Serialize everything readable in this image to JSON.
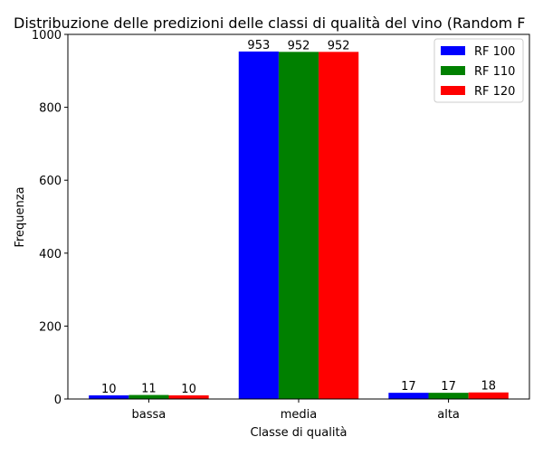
{
  "chart_data": {
    "type": "bar",
    "title": "Distribuzione delle predizioni delle classi di qualità del vino (Random F",
    "xlabel": "Classe di qualità",
    "ylabel": "Frequenza",
    "categories": [
      "bassa",
      "media",
      "alta"
    ],
    "series": [
      {
        "name": "RF 100",
        "values": [
          10,
          953,
          17
        ],
        "color": "#0000ff"
      },
      {
        "name": "RF 110",
        "values": [
          11,
          952,
          17
        ],
        "color": "#008000"
      },
      {
        "name": "RF 120",
        "values": [
          10,
          952,
          18
        ],
        "color": "#ff0000"
      }
    ],
    "ylim": [
      0,
      1000
    ],
    "yticks": [
      0,
      200,
      400,
      600,
      800,
      1000
    ],
    "grid": false,
    "legend_position": "top-right",
    "data_labels": true
  }
}
